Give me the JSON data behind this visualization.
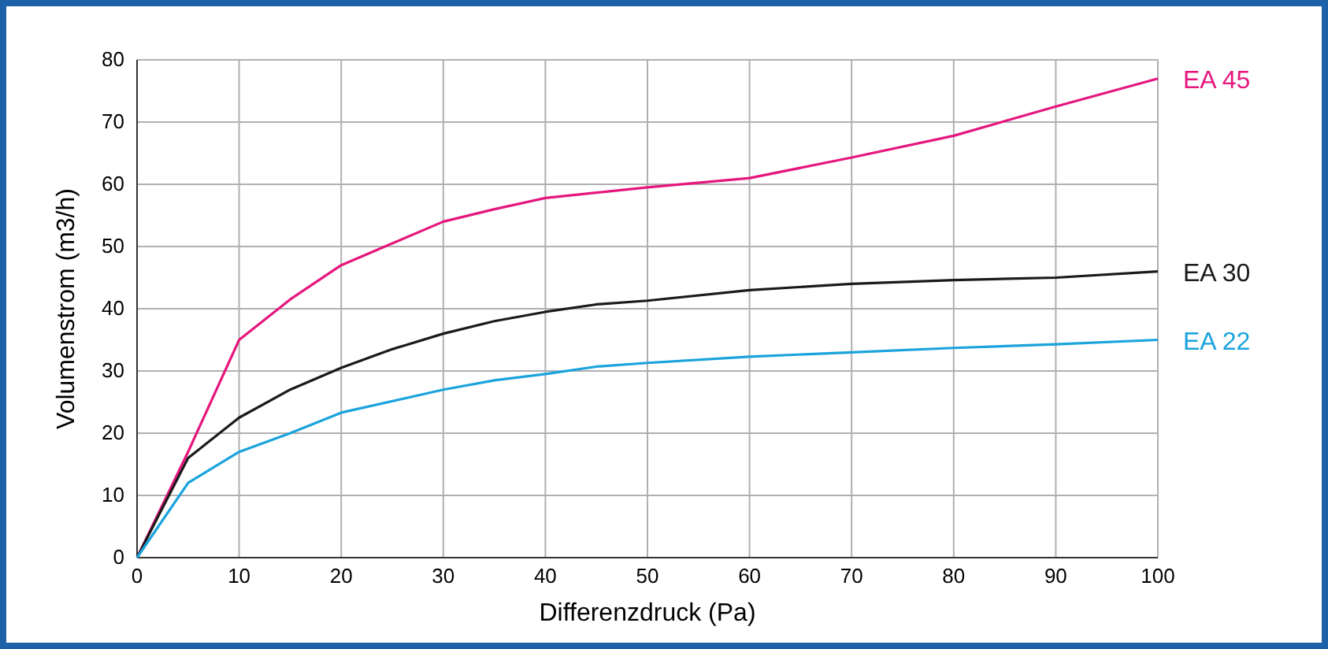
{
  "chart_data": {
    "type": "line",
    "xlabel": "Differenzdruck (Pa)",
    "ylabel": "Volumenstrom (m3/h)",
    "xlim": [
      0,
      100
    ],
    "ylim": [
      0,
      80
    ],
    "xticks": [
      0,
      10,
      20,
      30,
      40,
      50,
      60,
      70,
      80,
      90,
      100
    ],
    "yticks": [
      0,
      10,
      20,
      30,
      40,
      50,
      60,
      70,
      80
    ],
    "grid": true,
    "legend": false,
    "marker": "none",
    "line_style": "solid",
    "series": [
      {
        "name": "EA 45",
        "color": "#e5177e",
        "x": [
          0,
          5,
          10,
          15,
          20,
          25,
          30,
          35,
          40,
          50,
          60,
          70,
          80,
          90,
          100
        ],
        "values": [
          0,
          17,
          35,
          41.5,
          47,
          50.5,
          54,
          56,
          57.8,
          59.5,
          61,
          64.3,
          67.8,
          72.5,
          77
        ]
      },
      {
        "name": "EA 30",
        "color": "#1a1a1a",
        "x": [
          0,
          5,
          10,
          15,
          20,
          25,
          30,
          35,
          40,
          45,
          50,
          60,
          70,
          80,
          90,
          100
        ],
        "values": [
          0,
          16,
          22.5,
          27,
          30.5,
          33.5,
          36,
          38,
          39.5,
          40.7,
          41.3,
          43,
          44,
          44.6,
          45,
          46
        ]
      },
      {
        "name": "EA 22",
        "color": "#1aa3dc",
        "x": [
          0,
          5,
          10,
          15,
          20,
          30,
          35,
          40,
          45,
          50,
          60,
          70,
          80,
          90,
          100
        ],
        "values": [
          0,
          12,
          17,
          20,
          23.3,
          27,
          28.5,
          29.5,
          30.7,
          31.3,
          32.3,
          33,
          33.7,
          34.3,
          35
        ]
      }
    ]
  }
}
